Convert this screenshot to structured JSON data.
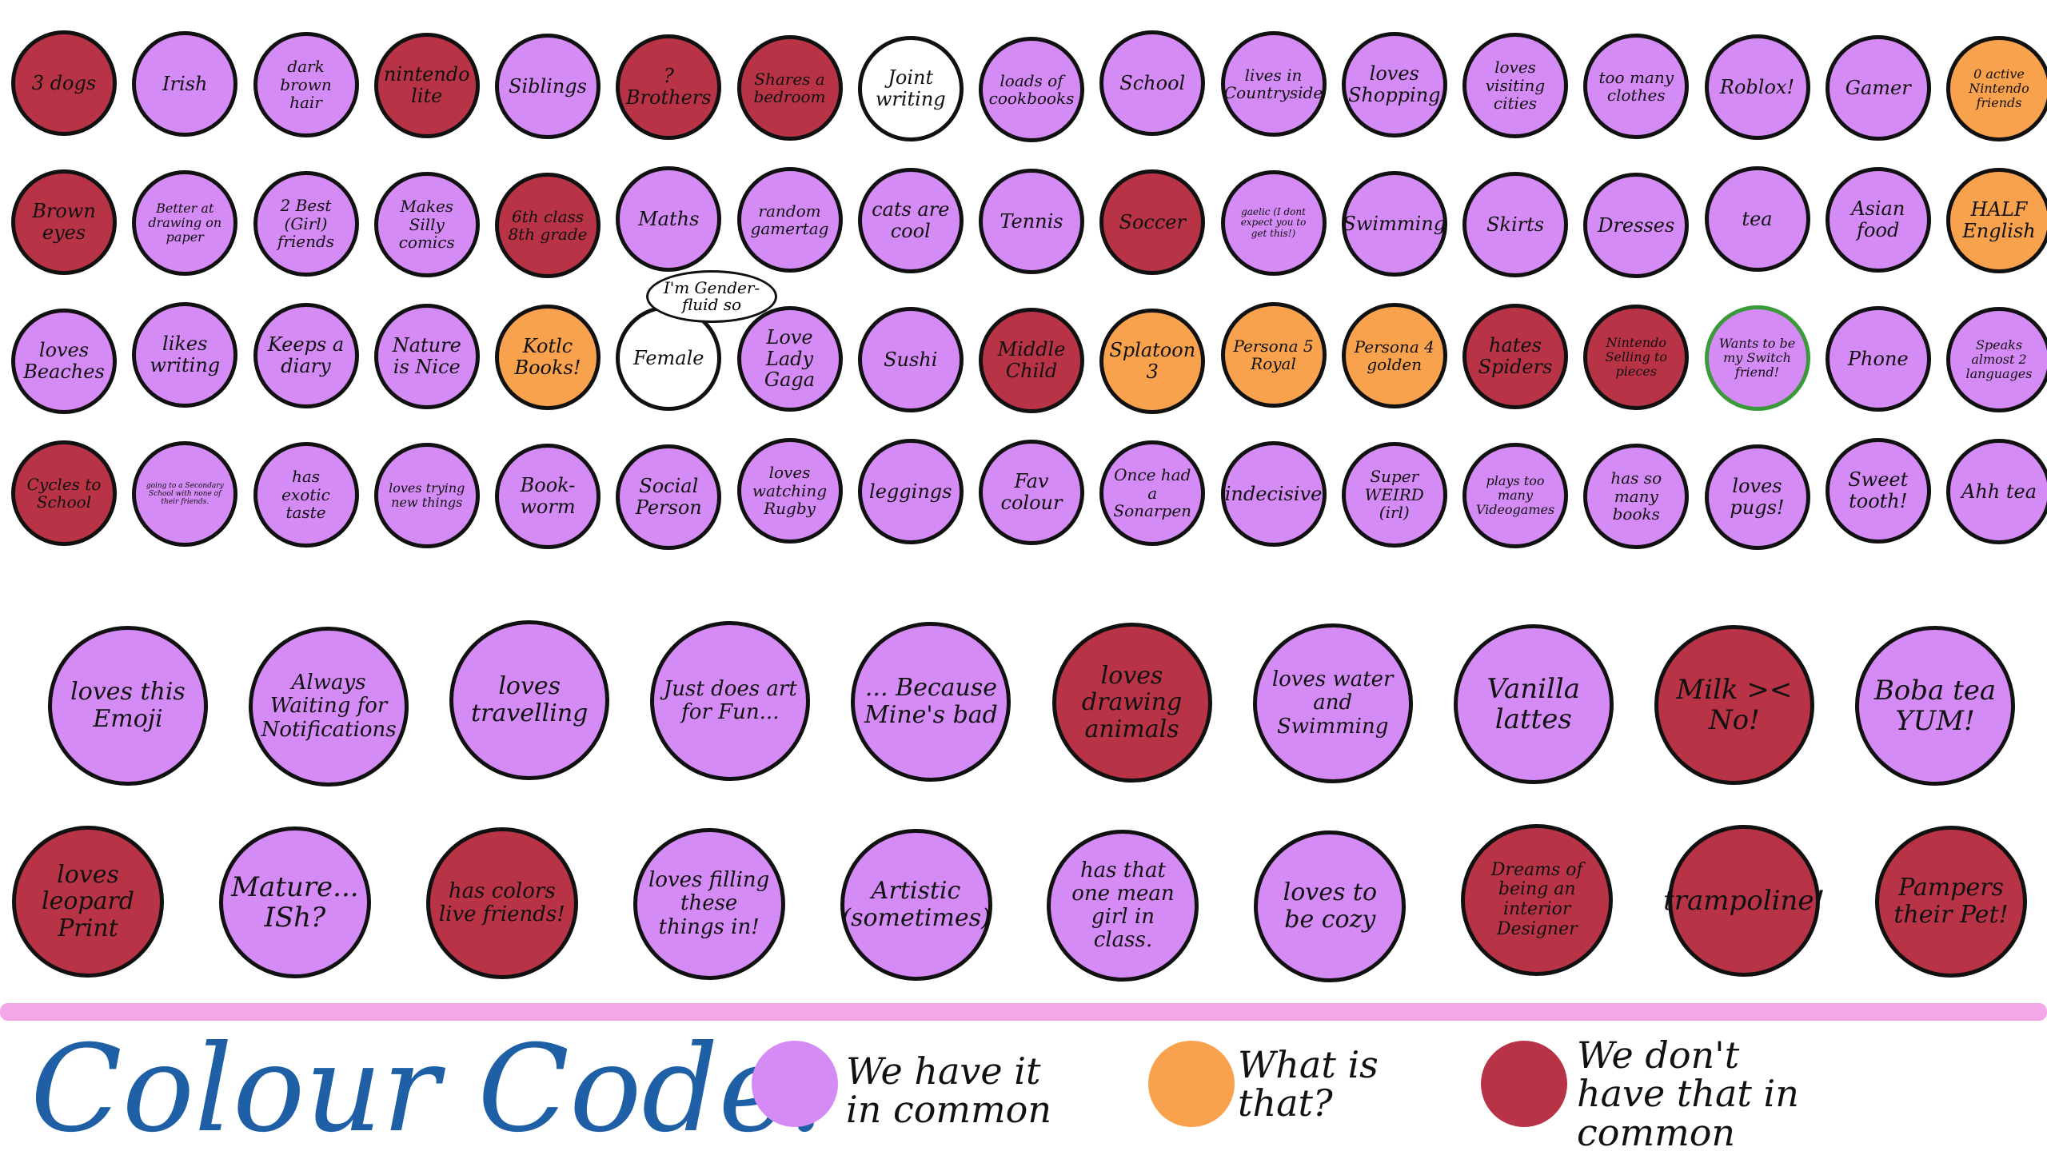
{
  "bubbles": [
    {
      "text": "3 dogs",
      "color": "notcommon"
    },
    {
      "text": "Irish",
      "color": "common"
    },
    {
      "text": "dark brown hair",
      "color": "common"
    },
    {
      "text": "nintendo lite",
      "color": "notcommon"
    },
    {
      "text": "Siblings",
      "color": "common"
    },
    {
      "text": "? Brothers",
      "color": "notcommon"
    },
    {
      "text": "Shares a bedroom",
      "color": "notcommon"
    },
    {
      "text": "Joint writing",
      "color": "plain"
    },
    {
      "text": "loads of cookbooks",
      "color": "common"
    },
    {
      "text": "School",
      "color": "common"
    },
    {
      "text": "lives in Countryside",
      "color": "common"
    },
    {
      "text": "loves Shopping",
      "color": "common"
    },
    {
      "text": "loves visiting cities",
      "color": "common"
    },
    {
      "text": "too many clothes",
      "color": "common"
    },
    {
      "text": "Roblox!",
      "color": "common"
    },
    {
      "text": "Gamer",
      "color": "common"
    },
    {
      "text": "0 active Nintendo friends",
      "color": "what"
    },
    {
      "text": "Brown eyes",
      "color": "notcommon"
    },
    {
      "text": "Better at drawing on paper",
      "color": "common"
    },
    {
      "text": "2 Best (Girl) friends",
      "color": "common"
    },
    {
      "text": "Makes Silly comics",
      "color": "common"
    },
    {
      "text": "6th class 8th grade",
      "color": "notcommon"
    },
    {
      "text": "Maths",
      "color": "common"
    },
    {
      "text": "random gamertag",
      "color": "common"
    },
    {
      "text": "cats are cool",
      "color": "common"
    },
    {
      "text": "Tennis",
      "color": "common"
    },
    {
      "text": "Soccer",
      "color": "notcommon"
    },
    {
      "text": "gaelic (I dont expect you to get this!)",
      "color": "common"
    },
    {
      "text": "Swimming",
      "color": "common"
    },
    {
      "text": "Skirts",
      "color": "common"
    },
    {
      "text": "Dresses",
      "color": "common"
    },
    {
      "text": "tea",
      "color": "common"
    },
    {
      "text": "Asian food",
      "color": "common"
    },
    {
      "text": "HALF English",
      "color": "what"
    },
    {
      "text": "loves Beaches",
      "color": "common"
    },
    {
      "text": "likes writing",
      "color": "common"
    },
    {
      "text": "Keeps a diary",
      "color": "common"
    },
    {
      "text": "Nature is Nice",
      "color": "common"
    },
    {
      "text": "Kotlc Books!",
      "color": "what"
    },
    {
      "text": "Female",
      "color": "plain"
    },
    {
      "text": "Love Lady Gaga",
      "color": "common"
    },
    {
      "text": "Sushi",
      "color": "common"
    },
    {
      "text": "Middle Child",
      "color": "notcommon"
    },
    {
      "text": "Splatoon 3",
      "color": "what"
    },
    {
      "text": "Persona 5 Royal",
      "color": "what"
    },
    {
      "text": "Persona 4 golden",
      "color": "what"
    },
    {
      "text": "hates Spiders",
      "color": "notcommon"
    },
    {
      "text": "Nintendo Selling to pieces",
      "color": "notcommon"
    },
    {
      "text": "Wants to be my Switch friend!",
      "color": "common"
    },
    {
      "text": "Phone",
      "color": "common"
    },
    {
      "text": "Speaks almost 2 languages",
      "color": "common"
    },
    {
      "text": "Cycles to School",
      "color": "notcommon"
    },
    {
      "text": "going to a Secondary School with none of their friends.",
      "color": "common"
    },
    {
      "text": "has exotic taste",
      "color": "common"
    },
    {
      "text": "loves trying new things",
      "color": "common"
    },
    {
      "text": "Book-worm",
      "color": "common"
    },
    {
      "text": "Social Person",
      "color": "common"
    },
    {
      "text": "loves watching Rugby",
      "color": "common"
    },
    {
      "text": "leggings",
      "color": "common"
    },
    {
      "text": "Fav colour",
      "color": "common"
    },
    {
      "text": "Once had a Sonarpen",
      "color": "common"
    },
    {
      "text": "indecisive",
      "color": "common"
    },
    {
      "text": "Super WEIRD (irl)",
      "color": "common"
    },
    {
      "text": "plays too many Videogames",
      "color": "common"
    },
    {
      "text": "has so many books",
      "color": "common"
    },
    {
      "text": "loves pugs!",
      "color": "common"
    },
    {
      "text": "Sweet tooth!",
      "color": "common"
    },
    {
      "text": "Ahh tea",
      "color": "common"
    },
    {
      "text": "loves this Emoji",
      "color": "common"
    },
    {
      "text": "Always Waiting for Notifications",
      "color": "common"
    },
    {
      "text": "loves travelling",
      "color": "common"
    },
    {
      "text": "Just does art for Fun...",
      "color": "common"
    },
    {
      "text": "... Because Mine's bad",
      "color": "common"
    },
    {
      "text": "loves drawing animals",
      "color": "notcommon"
    },
    {
      "text": "loves water and Swimming",
      "color": "common"
    },
    {
      "text": "Vanilla lattes",
      "color": "common"
    },
    {
      "text": "Milk >< No!",
      "color": "notcommon"
    },
    {
      "text": "Boba tea YUM!",
      "color": "common"
    },
    {
      "text": "loves leopard Print",
      "color": "notcommon"
    },
    {
      "text": "Mature... ISh?",
      "color": "common"
    },
    {
      "text": "has colors live friends!",
      "color": "notcommon"
    },
    {
      "text": "loves filling these things in!",
      "color": "common"
    },
    {
      "text": "Artistic (sometimes)",
      "color": "common"
    },
    {
      "text": "has that one mean girl in class.",
      "color": "common"
    },
    {
      "text": "loves to be cozy",
      "color": "common"
    },
    {
      "text": "Dreams of being an interior Designer",
      "color": "notcommon"
    },
    {
      "text": "trampoline!",
      "color": "notcommon"
    },
    {
      "text": "Pampers their Pet!",
      "color": "notcommon"
    }
  ],
  "speech_bubble": "I'm Gender-fluid so",
  "legend": {
    "title": "Colour Code:",
    "items": [
      {
        "label": "We have it in common",
        "color": "#d58bf5"
      },
      {
        "label": "What is that?",
        "color": "#f9a24e"
      },
      {
        "label": "We don't have that in common",
        "color": "#b83345"
      }
    ]
  },
  "colors": {
    "common": "#d58bf5",
    "what": "#f9a24e",
    "notcommon": "#b83345",
    "divider": "#f4a7e8",
    "title": "#1e5fa6"
  }
}
